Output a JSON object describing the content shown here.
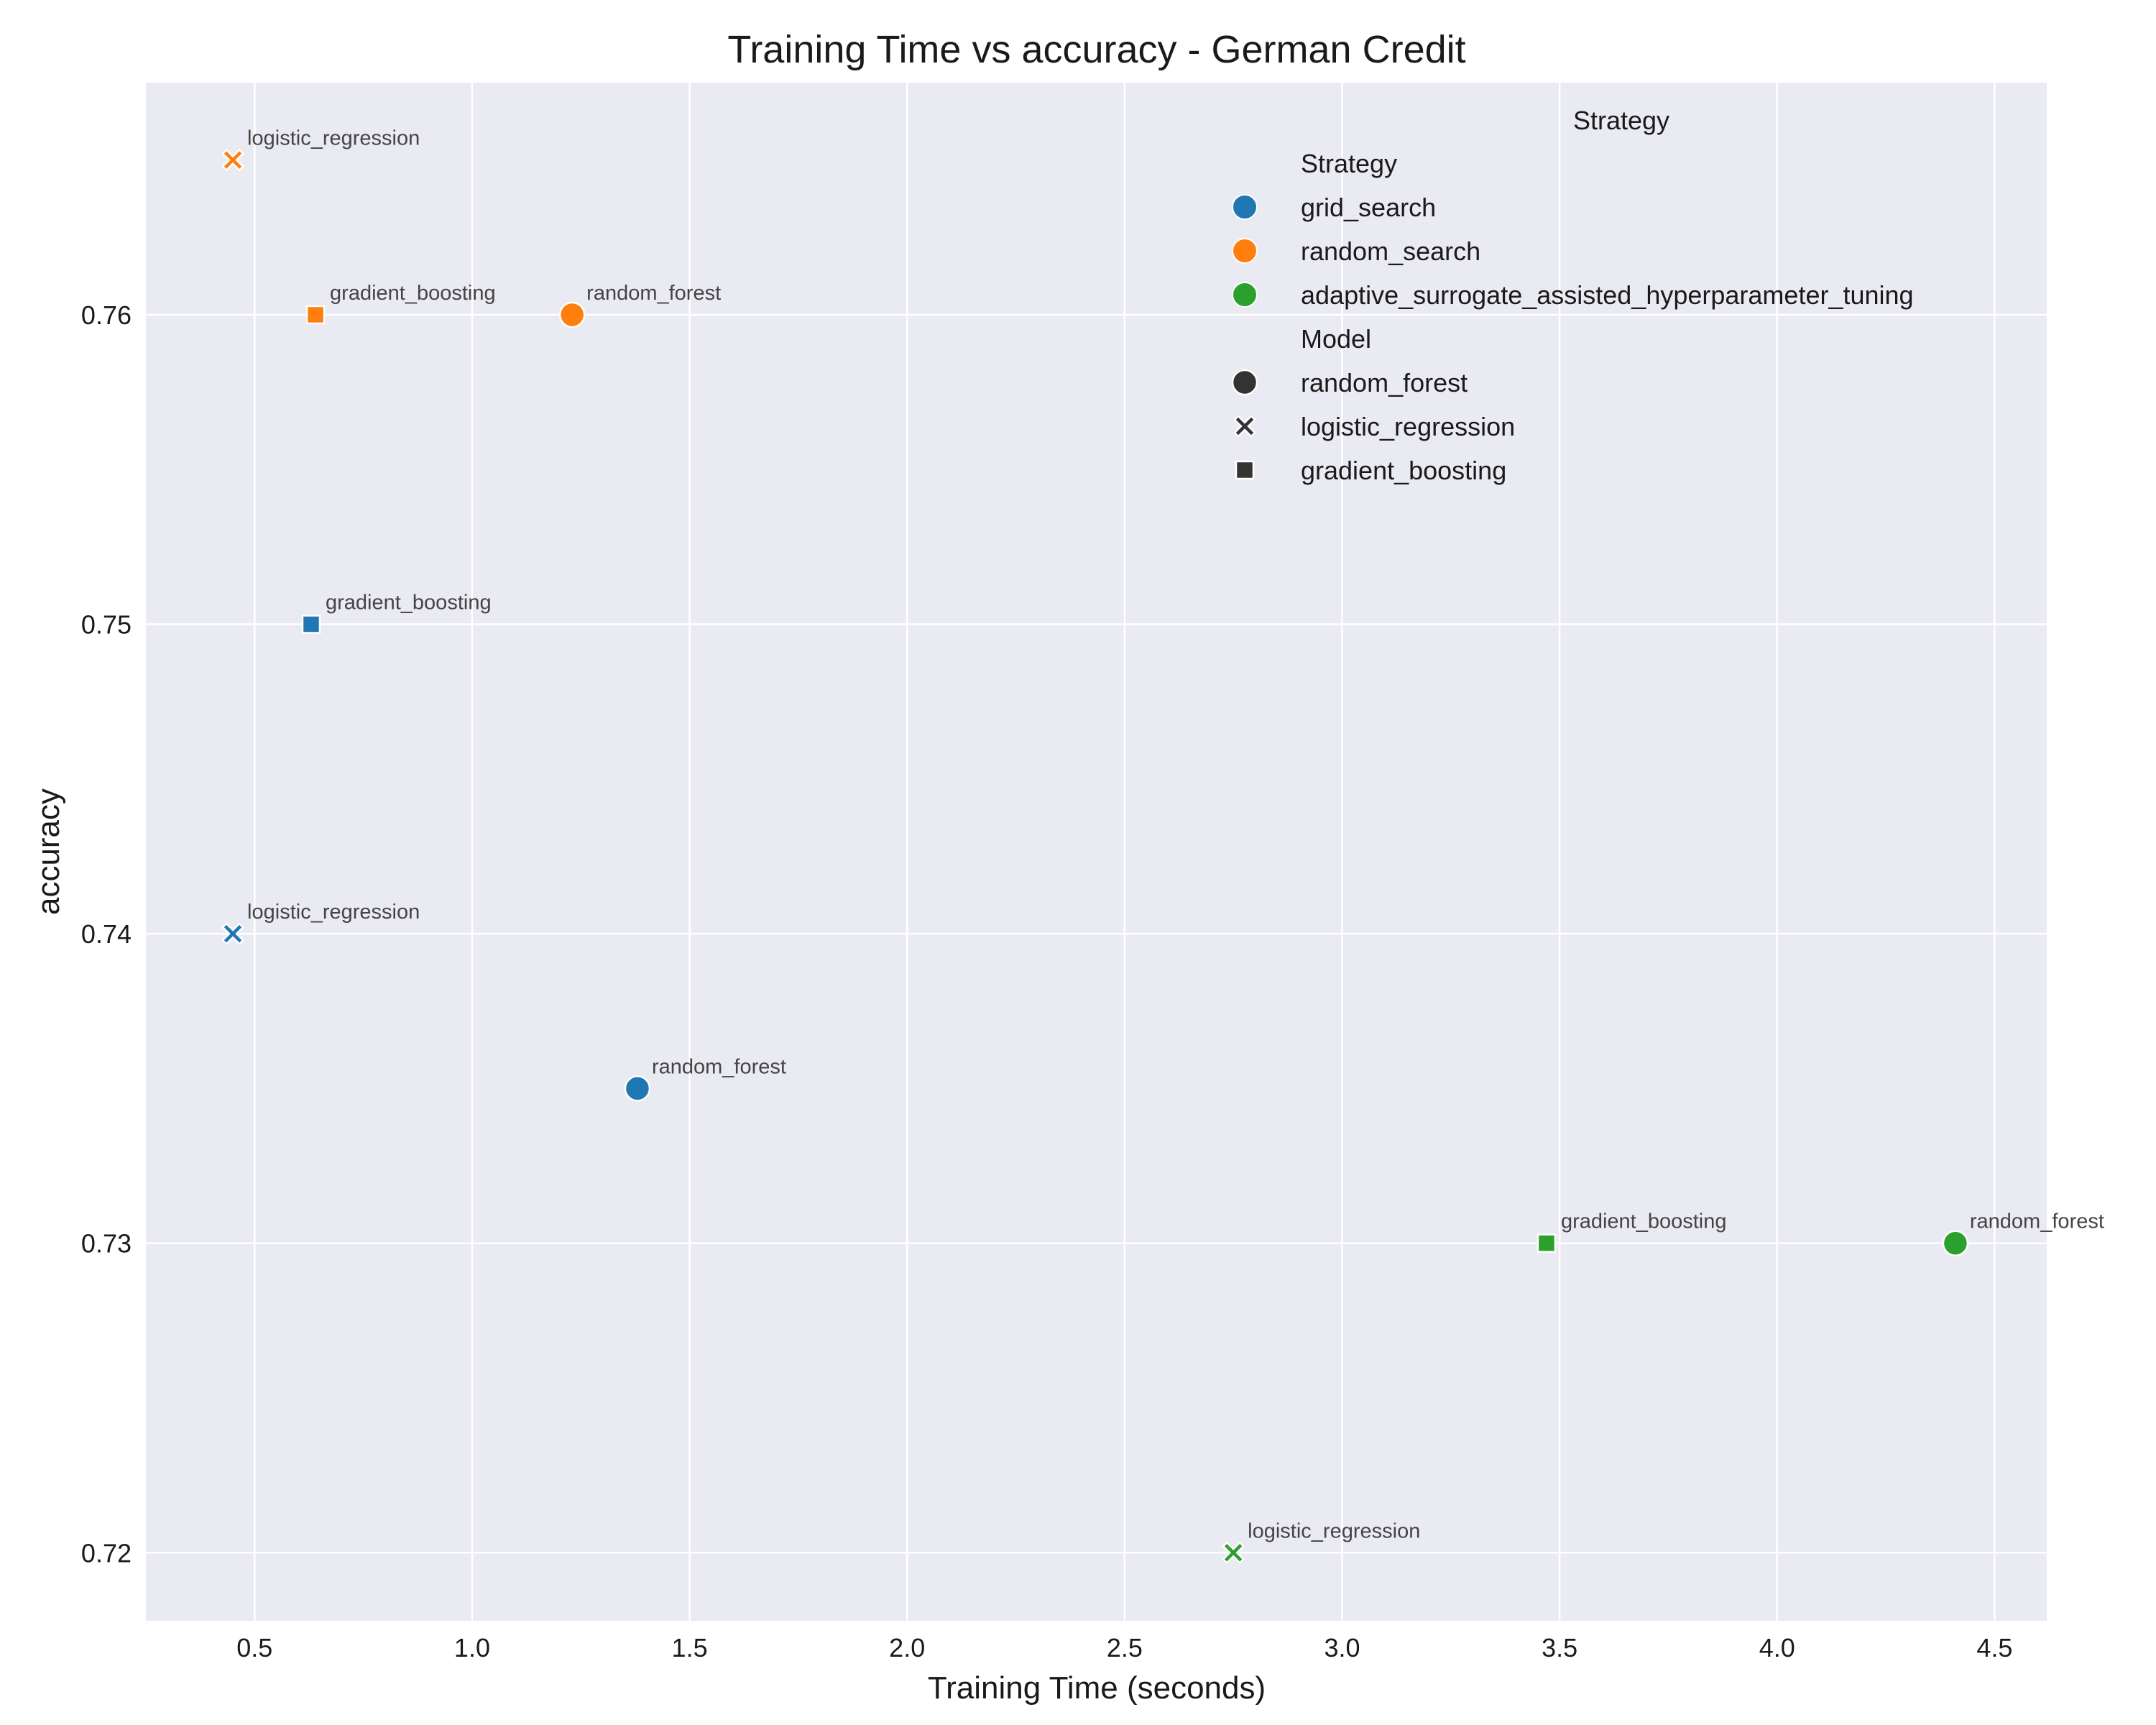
{
  "chart_data": {
    "type": "scatter",
    "title": "Training Time vs accuracy - German Credit",
    "xlabel": "Training Time (seconds)",
    "ylabel": "accuracy",
    "xlim": [
      0.25,
      4.62
    ],
    "ylim": [
      0.7178,
      0.7675
    ],
    "xticks": [
      0.5,
      1.0,
      1.5,
      2.0,
      2.5,
      3.0,
      3.5,
      4.0,
      4.5
    ],
    "xtick_labels": [
      "0.5",
      "1.0",
      "1.5",
      "2.0",
      "2.5",
      "3.0",
      "3.5",
      "4.0",
      "4.5"
    ],
    "yticks": [
      0.72,
      0.73,
      0.74,
      0.75,
      0.76
    ],
    "ytick_labels": [
      "0.72",
      "0.73",
      "0.74",
      "0.75",
      "0.76"
    ],
    "grid": true,
    "background": "#eaeaf2",
    "legend": {
      "placement": "top-right",
      "outer_title": "Strategy",
      "hue_title": "Strategy",
      "hue_entries": [
        {
          "label": "grid_search",
          "color": "#1f77b4"
        },
        {
          "label": "random_search",
          "color": "#ff7f0e"
        },
        {
          "label": "adaptive_surrogate_assisted_hyperparameter_tuning",
          "color": "#2ca02c"
        }
      ],
      "style_title": "Model",
      "style_entries": [
        {
          "label": "random_forest",
          "marker": "circle"
        },
        {
          "label": "logistic_regression",
          "marker": "x"
        },
        {
          "label": "gradient_boosting",
          "marker": "square"
        }
      ],
      "marker_color": "#333333"
    },
    "points": [
      {
        "strategy": "grid_search",
        "model": "random_forest",
        "x": 1.38,
        "y": 0.735,
        "color": "#1f77b4",
        "marker": "circle",
        "label": "random_forest"
      },
      {
        "strategy": "grid_search",
        "model": "logistic_regression",
        "x": 0.45,
        "y": 0.74,
        "color": "#1f77b4",
        "marker": "x",
        "label": "logistic_regression"
      },
      {
        "strategy": "grid_search",
        "model": "gradient_boosting",
        "x": 0.63,
        "y": 0.75,
        "color": "#1f77b4",
        "marker": "square",
        "label": "gradient_boosting"
      },
      {
        "strategy": "random_search",
        "model": "random_forest",
        "x": 1.23,
        "y": 0.76,
        "color": "#ff7f0e",
        "marker": "circle",
        "label": "random_forest"
      },
      {
        "strategy": "random_search",
        "model": "logistic_regression",
        "x": 0.45,
        "y": 0.765,
        "color": "#ff7f0e",
        "marker": "x",
        "label": "logistic_regression"
      },
      {
        "strategy": "random_search",
        "model": "gradient_boosting",
        "x": 0.64,
        "y": 0.76,
        "color": "#ff7f0e",
        "marker": "square",
        "label": "gradient_boosting"
      },
      {
        "strategy": "adaptive_surrogate_assisted_hyperparameter_tuning",
        "model": "random_forest",
        "x": 4.41,
        "y": 0.73,
        "color": "#2ca02c",
        "marker": "circle",
        "label": "random_forest"
      },
      {
        "strategy": "adaptive_surrogate_assisted_hyperparameter_tuning",
        "model": "logistic_regression",
        "x": 2.75,
        "y": 0.72,
        "color": "#2ca02c",
        "marker": "x",
        "label": "logistic_regression"
      },
      {
        "strategy": "adaptive_surrogate_assisted_hyperparameter_tuning",
        "model": "gradient_boosting",
        "x": 3.47,
        "y": 0.73,
        "color": "#2ca02c",
        "marker": "square",
        "label": "gradient_boosting"
      }
    ]
  }
}
